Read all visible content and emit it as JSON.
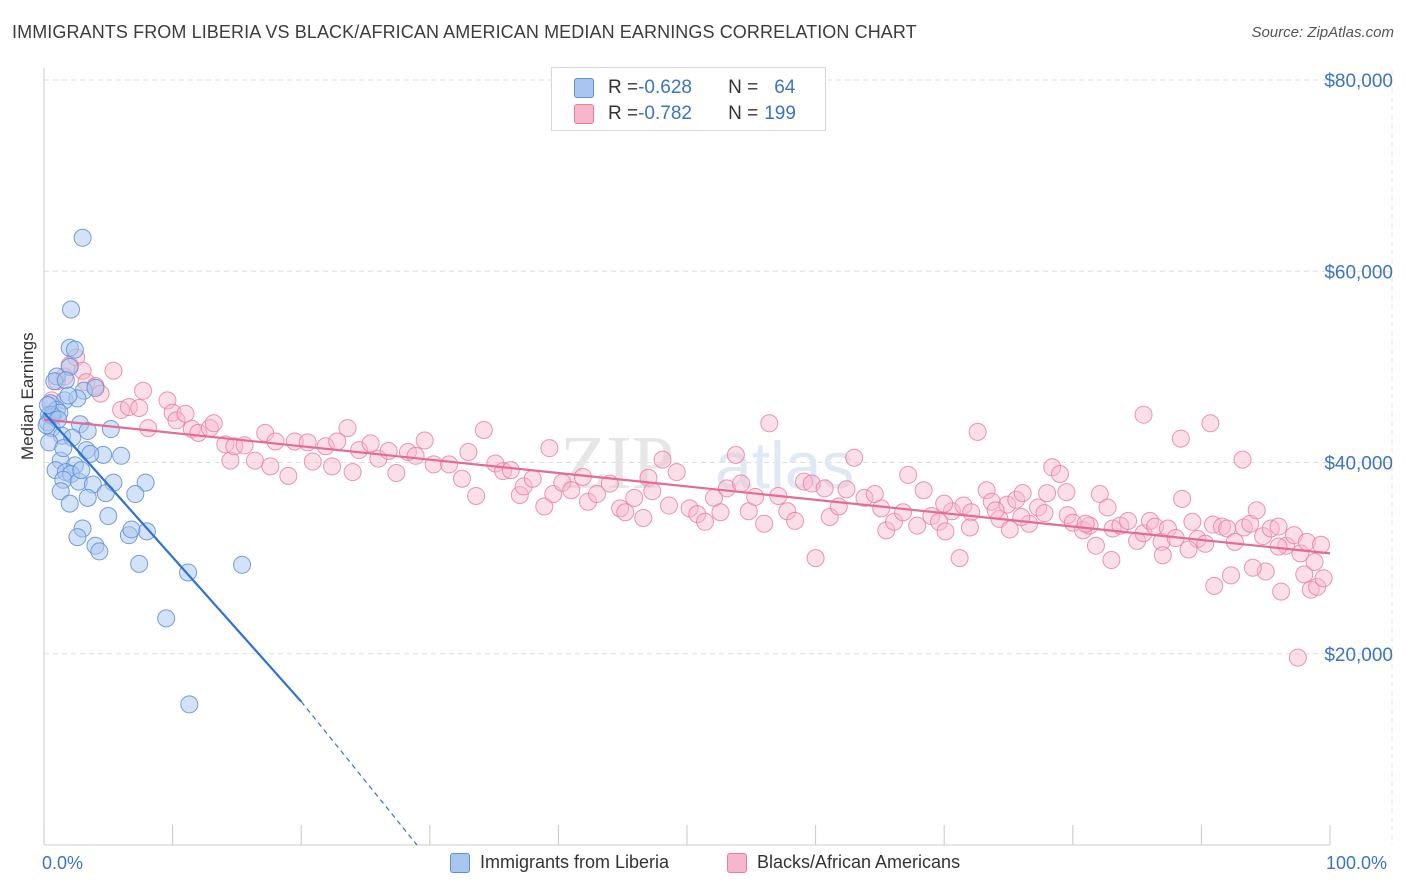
{
  "title": "IMMIGRANTS FROM LIBERIA VS BLACK/AFRICAN AMERICAN MEDIAN EARNINGS CORRELATION CHART",
  "source": "Source: ZipAtlas.com",
  "legend_top": {
    "row1": {
      "r_key": "R = ",
      "r_val": "-0.628",
      "n_key": "N = ",
      "n_val": "64"
    },
    "row2": {
      "r_key": "R = ",
      "r_val": "-0.782",
      "n_key": "N = ",
      "n_val": "199"
    }
  },
  "legend_bottom": {
    "s1": "Immigrants from Liberia",
    "s2": "Blacks/African Americans"
  },
  "x_ticks": {
    "left": "0.0%",
    "right": "100.0%"
  },
  "colors": {
    "blue": "#5b8fd6",
    "blue_fill": "#a9c6ef",
    "pink": "#e97aa0",
    "pink_fill": "#f6b7cc",
    "tick_text": "#3a75c4",
    "blue_line": "#2e73d4",
    "pink_line": "#e56a96"
  },
  "chart_data": {
    "type": "scatter",
    "title": "IMMIGRANTS FROM LIBERIA VS BLACK/AFRICAN AMERICAN MEDIAN EARNINGS CORRELATION CHART",
    "xlabel": "",
    "ylabel": "Median Earnings",
    "xlim": [
      0,
      100
    ],
    "ylim": [
      0,
      80000
    ],
    "yticks": [
      20000,
      40000,
      60000,
      80000
    ],
    "ytick_labels": [
      "$20,000",
      "$40,000",
      "$60,000",
      "$80,000"
    ],
    "xtick_labels": [
      "0.0%",
      "100.0%"
    ],
    "series": [
      {
        "name": "Immigrants from Liberia",
        "R": -0.628,
        "N": 64,
        "trend": {
          "x0": 0,
          "y0": 45200,
          "x1": 20,
          "y1": 15000,
          "dash_to_x": 29,
          "dash_to_y": 0
        },
        "points": [
          [
            3.0,
            63500
          ],
          [
            2.1,
            56000
          ],
          [
            2.0,
            52000
          ],
          [
            2.4,
            51800
          ],
          [
            2.0,
            50000
          ],
          [
            1.0,
            49000
          ],
          [
            0.8,
            48500
          ],
          [
            1.7,
            48600
          ],
          [
            3.1,
            47500
          ],
          [
            4.0,
            47800
          ],
          [
            1.6,
            46500
          ],
          [
            2.6,
            46700
          ],
          [
            0.5,
            46200
          ],
          [
            1.0,
            45500
          ],
          [
            0.4,
            45000
          ],
          [
            0.7,
            44800
          ],
          [
            1.2,
            45200
          ],
          [
            0.3,
            44200
          ],
          [
            0.6,
            43600
          ],
          [
            2.8,
            44000
          ],
          [
            3.4,
            43300
          ],
          [
            5.2,
            43500
          ],
          [
            1.4,
            42800
          ],
          [
            2.2,
            42600
          ],
          [
            0.4,
            42100
          ],
          [
            3.3,
            41300
          ],
          [
            6.0,
            40700
          ],
          [
            4.6,
            40800
          ],
          [
            1.3,
            40200
          ],
          [
            2.4,
            39700
          ],
          [
            0.9,
            39200
          ],
          [
            1.7,
            39000
          ],
          [
            2.1,
            38800
          ],
          [
            1.5,
            38200
          ],
          [
            2.7,
            38000
          ],
          [
            5.4,
            37900
          ],
          [
            7.9,
            37900
          ],
          [
            3.8,
            37700
          ],
          [
            1.3,
            37000
          ],
          [
            7.1,
            36700
          ],
          [
            3.4,
            36300
          ],
          [
            2.0,
            35700
          ],
          [
            5.0,
            34400
          ],
          [
            3.0,
            33100
          ],
          [
            8.0,
            32800
          ],
          [
            2.6,
            32200
          ],
          [
            6.6,
            32400
          ],
          [
            4.0,
            31300
          ],
          [
            4.3,
            30700
          ],
          [
            7.4,
            29400
          ],
          [
            11.2,
            28500
          ],
          [
            15.4,
            29300
          ],
          [
            9.5,
            23700
          ],
          [
            11.3,
            14700
          ],
          [
            0.6,
            45000
          ],
          [
            1.1,
            44500
          ],
          [
            0.2,
            43900
          ],
          [
            1.9,
            47000
          ],
          [
            0.3,
            46000
          ],
          [
            1.5,
            41500
          ],
          [
            2.9,
            39200
          ],
          [
            4.8,
            36800
          ],
          [
            3.6,
            40900
          ],
          [
            6.8,
            33000
          ]
        ]
      },
      {
        "name": "Blacks/African Americans",
        "R": -0.782,
        "N": 199,
        "trend": {
          "x0": 0,
          "y0": 44500,
          "x1": 100,
          "y1": 30500
        },
        "points": [
          [
            0.6,
            46500
          ],
          [
            1.0,
            48500
          ],
          [
            1.6,
            49000
          ],
          [
            2.0,
            50200
          ],
          [
            2.5,
            51000
          ],
          [
            3.0,
            49600
          ],
          [
            3.3,
            48400
          ],
          [
            4.0,
            48000
          ],
          [
            4.4,
            47200
          ],
          [
            5.4,
            49600
          ],
          [
            6.0,
            45500
          ],
          [
            6.6,
            45800
          ],
          [
            7.4,
            45700
          ],
          [
            8.1,
            43600
          ],
          [
            7.7,
            47500
          ],
          [
            9.6,
            46500
          ],
          [
            10.0,
            45200
          ],
          [
            10.3,
            44400
          ],
          [
            11.0,
            45100
          ],
          [
            11.5,
            43500
          ],
          [
            12.0,
            43100
          ],
          [
            12.9,
            43600
          ],
          [
            13.2,
            44100
          ],
          [
            14.1,
            41900
          ],
          [
            14.5,
            40200
          ],
          [
            14.8,
            41700
          ],
          [
            15.6,
            41800
          ],
          [
            16.4,
            40200
          ],
          [
            17.2,
            43100
          ],
          [
            17.6,
            39600
          ],
          [
            18.0,
            42200
          ],
          [
            19.0,
            38600
          ],
          [
            19.5,
            42200
          ],
          [
            20.5,
            42100
          ],
          [
            20.9,
            40100
          ],
          [
            21.9,
            41700
          ],
          [
            22.4,
            39600
          ],
          [
            22.8,
            42200
          ],
          [
            23.6,
            43600
          ],
          [
            24.0,
            39000
          ],
          [
            24.5,
            41300
          ],
          [
            25.4,
            42000
          ],
          [
            26.0,
            40400
          ],
          [
            26.8,
            41200
          ],
          [
            27.4,
            38900
          ],
          [
            28.3,
            41100
          ],
          [
            28.9,
            40700
          ],
          [
            29.6,
            42300
          ],
          [
            30.3,
            39800
          ],
          [
            31.5,
            39800
          ],
          [
            32.5,
            38300
          ],
          [
            33.0,
            41100
          ],
          [
            33.6,
            36500
          ],
          [
            34.2,
            43400
          ],
          [
            35.1,
            39900
          ],
          [
            35.7,
            39100
          ],
          [
            36.3,
            39200
          ],
          [
            37.0,
            36600
          ],
          [
            37.3,
            37500
          ],
          [
            38.0,
            38300
          ],
          [
            38.9,
            35400
          ],
          [
            39.3,
            41500
          ],
          [
            39.6,
            36700
          ],
          [
            40.3,
            37900
          ],
          [
            41.0,
            37100
          ],
          [
            41.9,
            38500
          ],
          [
            42.3,
            35900
          ],
          [
            43.0,
            36700
          ],
          [
            44.0,
            37800
          ],
          [
            44.8,
            35200
          ],
          [
            45.2,
            34800
          ],
          [
            45.9,
            36300
          ],
          [
            46.6,
            34200
          ],
          [
            47.0,
            38400
          ],
          [
            47.3,
            37000
          ],
          [
            48.1,
            40300
          ],
          [
            48.6,
            35500
          ],
          [
            49.2,
            39000
          ],
          [
            50.2,
            35200
          ],
          [
            50.8,
            34600
          ],
          [
            51.4,
            33800
          ],
          [
            52.1,
            36300
          ],
          [
            52.6,
            34800
          ],
          [
            53.1,
            37300
          ],
          [
            53.8,
            40800
          ],
          [
            54.2,
            37800
          ],
          [
            54.8,
            34900
          ],
          [
            55.3,
            36400
          ],
          [
            56.0,
            33600
          ],
          [
            56.4,
            44100
          ],
          [
            57.1,
            36500
          ],
          [
            57.8,
            34900
          ],
          [
            58.4,
            33900
          ],
          [
            59.1,
            38000
          ],
          [
            59.7,
            37800
          ],
          [
            60.0,
            30000
          ],
          [
            60.7,
            37300
          ],
          [
            61.1,
            34300
          ],
          [
            61.8,
            35400
          ],
          [
            62.4,
            37200
          ],
          [
            63.0,
            40500
          ],
          [
            63.8,
            36300
          ],
          [
            64.6,
            36700
          ],
          [
            65.1,
            35200
          ],
          [
            65.5,
            32900
          ],
          [
            66.1,
            33800
          ],
          [
            66.8,
            34800
          ],
          [
            67.2,
            38700
          ],
          [
            67.9,
            33400
          ],
          [
            68.4,
            37100
          ],
          [
            69.0,
            34400
          ],
          [
            69.6,
            33800
          ],
          [
            70.1,
            32800
          ],
          [
            70.6,
            34900
          ],
          [
            71.2,
            30000
          ],
          [
            71.5,
            35500
          ],
          [
            72.1,
            34800
          ],
          [
            72.6,
            43200
          ],
          [
            73.3,
            37100
          ],
          [
            73.7,
            35900
          ],
          [
            74.3,
            34100
          ],
          [
            74.9,
            35600
          ],
          [
            75.6,
            36100
          ],
          [
            76.1,
            36800
          ],
          [
            76.6,
            33600
          ],
          [
            77.3,
            35300
          ],
          [
            77.8,
            34700
          ],
          [
            78.4,
            39500
          ],
          [
            79.0,
            38800
          ],
          [
            79.6,
            34500
          ],
          [
            80.0,
            33700
          ],
          [
            80.8,
            32900
          ],
          [
            81.3,
            33400
          ],
          [
            81.8,
            31300
          ],
          [
            82.1,
            36700
          ],
          [
            82.7,
            35300
          ],
          [
            83.1,
            33100
          ],
          [
            83.7,
            33400
          ],
          [
            84.3,
            33900
          ],
          [
            85.0,
            31800
          ],
          [
            85.5,
            32600
          ],
          [
            86.0,
            33900
          ],
          [
            86.4,
            33300
          ],
          [
            86.9,
            31700
          ],
          [
            87.4,
            33100
          ],
          [
            88.0,
            32100
          ],
          [
            88.5,
            36200
          ],
          [
            89.3,
            33800
          ],
          [
            89.7,
            32000
          ],
          [
            90.3,
            31500
          ],
          [
            90.9,
            33500
          ],
          [
            91.6,
            33300
          ],
          [
            92.0,
            33100
          ],
          [
            92.6,
            31700
          ],
          [
            93.3,
            33200
          ],
          [
            93.8,
            33600
          ],
          [
            94.3,
            35000
          ],
          [
            94.8,
            32300
          ],
          [
            95.4,
            33100
          ],
          [
            96.0,
            33300
          ],
          [
            96.6,
            31300
          ],
          [
            97.2,
            32400
          ],
          [
            97.7,
            30500
          ],
          [
            98.2,
            31700
          ],
          [
            98.8,
            29600
          ],
          [
            99.3,
            31400
          ],
          [
            75.1,
            33000
          ],
          [
            85.5,
            45000
          ],
          [
            88.4,
            42500
          ],
          [
            90.7,
            44100
          ],
          [
            93.2,
            40300
          ],
          [
            96.0,
            31200
          ],
          [
            98.0,
            28300
          ],
          [
            98.5,
            26700
          ],
          [
            99.0,
            27000
          ],
          [
            99.5,
            27900
          ],
          [
            97.5,
            19600
          ],
          [
            96.2,
            26500
          ],
          [
            95.0,
            28600
          ],
          [
            94.0,
            29000
          ],
          [
            92.3,
            28200
          ],
          [
            91.0,
            27100
          ],
          [
            89.0,
            30900
          ],
          [
            87.0,
            30300
          ],
          [
            83.0,
            29800
          ],
          [
            81.0,
            33600
          ],
          [
            79.5,
            36900
          ],
          [
            78.0,
            36800
          ],
          [
            76.0,
            34300
          ],
          [
            74.0,
            35000
          ],
          [
            72.0,
            33200
          ],
          [
            70.0,
            35700
          ]
        ]
      }
    ]
  }
}
